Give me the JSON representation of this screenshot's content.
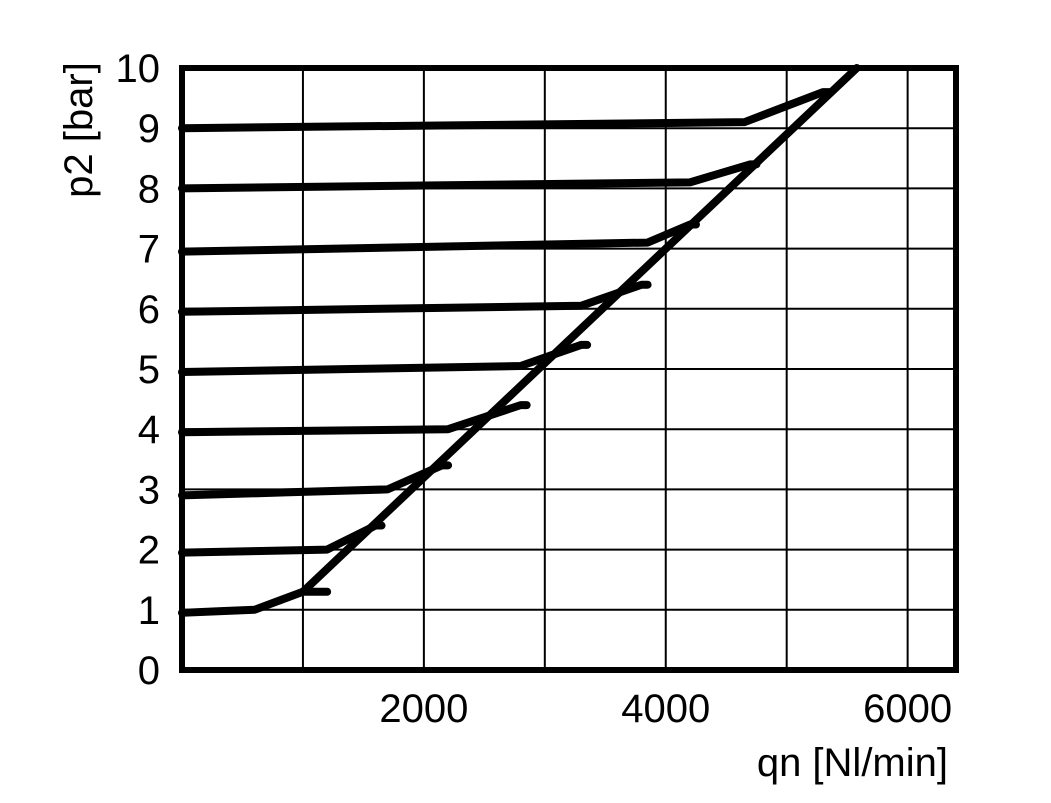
{
  "chart_data": {
    "type": "line",
    "xlabel": "qn [Nl/min]",
    "ylabel": "p2 [bar]",
    "xlim": [
      0,
      6400
    ],
    "ylim": [
      0,
      10
    ],
    "x_ticks": [
      2000,
      4000,
      6000
    ],
    "x_tick_labels": [
      "2000",
      "4000",
      "6000"
    ],
    "y_ticks": [
      0,
      1,
      2,
      3,
      4,
      5,
      6,
      7,
      8,
      9,
      10
    ],
    "y_tick_labels": [
      "0",
      "1",
      "2",
      "3",
      "4",
      "5",
      "6",
      "7",
      "8",
      "9",
      "10"
    ],
    "grid": true,
    "legend": "none",
    "line_color": "#000000",
    "limit_line": {
      "x": [
        1000,
        5580
      ],
      "y": [
        1.3,
        10.0
      ]
    },
    "series": [
      {
        "x": [
          0,
          600,
          1000,
          1200
        ],
        "y": [
          0.95,
          1.0,
          1.3,
          1.3
        ]
      },
      {
        "x": [
          0,
          1200,
          1600,
          1650
        ],
        "y": [
          1.95,
          2.0,
          2.4,
          2.4
        ]
      },
      {
        "x": [
          0,
          1700,
          2150,
          2200
        ],
        "y": [
          2.9,
          3.0,
          3.4,
          3.4
        ]
      },
      {
        "x": [
          0,
          2200,
          2800,
          2850
        ],
        "y": [
          3.95,
          4.0,
          4.4,
          4.4
        ]
      },
      {
        "x": [
          0,
          2800,
          3300,
          3350
        ],
        "y": [
          4.95,
          5.05,
          5.4,
          5.4
        ]
      },
      {
        "x": [
          0,
          3300,
          3800,
          3850
        ],
        "y": [
          5.95,
          6.05,
          6.4,
          6.4
        ]
      },
      {
        "x": [
          0,
          3850,
          4200,
          4250
        ],
        "y": [
          6.95,
          7.1,
          7.4,
          7.4
        ]
      },
      {
        "x": [
          0,
          4200,
          4700,
          4750
        ],
        "y": [
          8.0,
          8.1,
          8.4,
          8.4
        ]
      },
      {
        "x": [
          0,
          4650,
          5300,
          5350
        ],
        "y": [
          9.0,
          9.1,
          9.6,
          9.6
        ]
      }
    ]
  }
}
